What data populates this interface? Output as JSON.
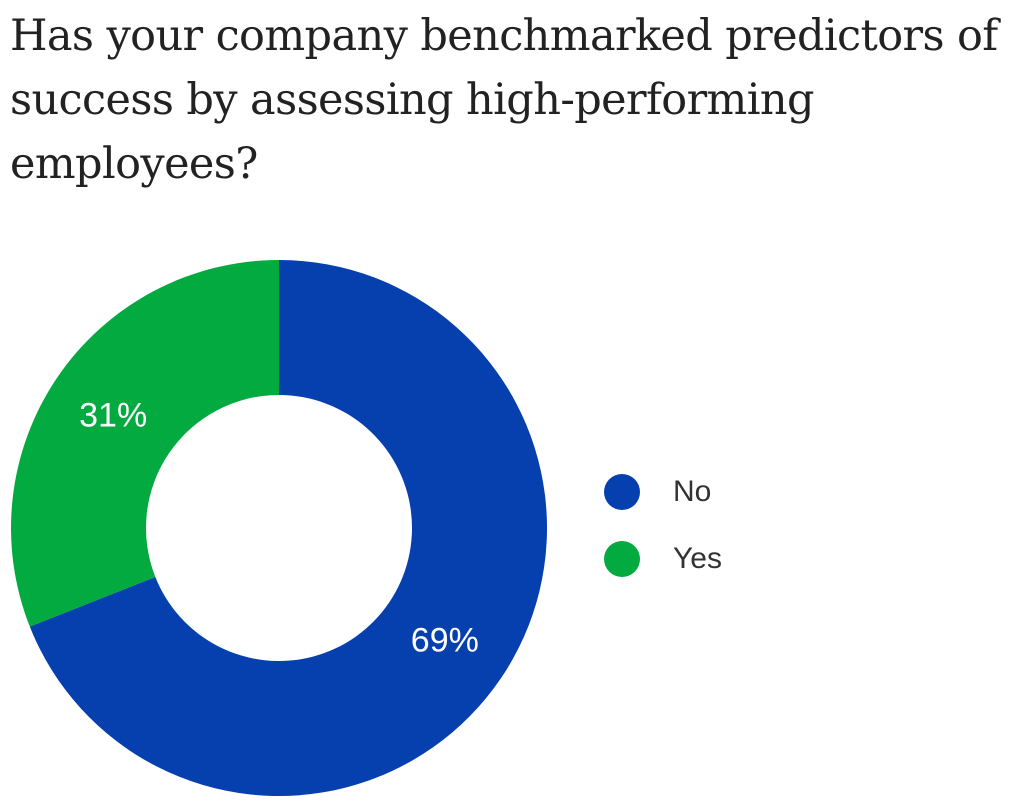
{
  "chart_data": {
    "type": "pie",
    "style": "donut",
    "title": "Has your company benchmarked predictors of success by assessing high-performing employees?",
    "categories": [
      "No",
      "Yes"
    ],
    "values": [
      69,
      31
    ],
    "labels": [
      "69%",
      "31%"
    ],
    "colors": [
      "#0540AE",
      "#03AA40"
    ],
    "legend_position": "right"
  }
}
